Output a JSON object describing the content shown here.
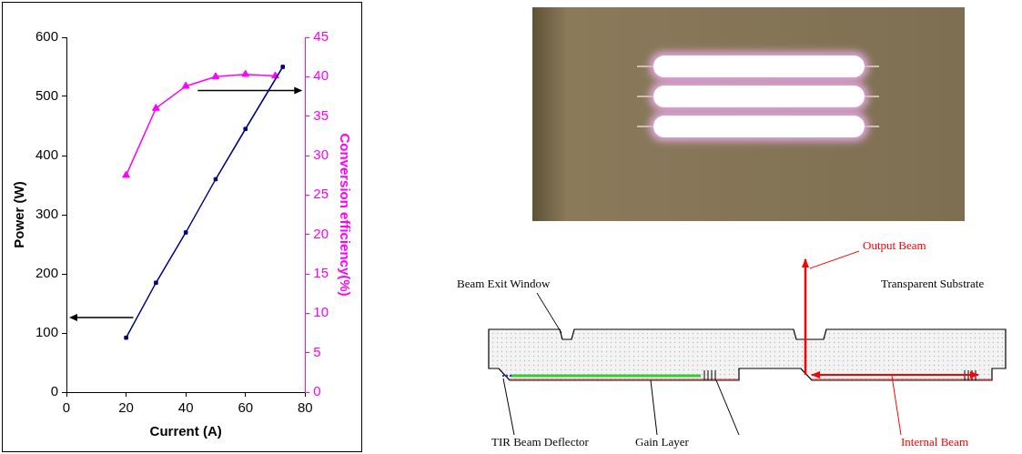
{
  "chart_data": {
    "type": "line",
    "x_label": "Current (A)",
    "y_label": "Power (W)",
    "y2_label": "Conversion efficiency(%)",
    "xlim": [
      0,
      80
    ],
    "xticks": [
      0,
      20,
      40,
      60,
      80
    ],
    "ylim": [
      0,
      600
    ],
    "yticks": [
      0,
      100,
      200,
      300,
      400,
      500,
      600
    ],
    "y2lim": [
      0,
      45
    ],
    "y2ticks": [
      0,
      5,
      10,
      15,
      20,
      25,
      30,
      35,
      40,
      45
    ],
    "grid": false,
    "series": [
      {
        "color": "#000080",
        "marker": "square",
        "line_style": "solid",
        "x": [
          20,
          30,
          40,
          50,
          60,
          72.5
        ],
        "values": [
          92,
          185,
          270,
          360,
          445,
          550
        ]
      },
      {
        "axis": "y2",
        "color": "#ff00ff",
        "marker": "triangle",
        "line_style": "solid",
        "x": [
          20,
          30,
          40,
          50,
          60,
          70
        ],
        "values": [
          27.5,
          36,
          38.8,
          40,
          40.3,
          40.1
        ]
      }
    ]
  },
  "diagram": {
    "labels": {
      "beam_exit_window": "Beam Exit Window",
      "transparent_substrate": "Transparent Substrate",
      "output_beam": "Output Beam",
      "tir_beam_deflector": "TIR Beam Deflector",
      "gain_layer": "Gain Layer",
      "internal_beam": "Internal Beam"
    }
  }
}
